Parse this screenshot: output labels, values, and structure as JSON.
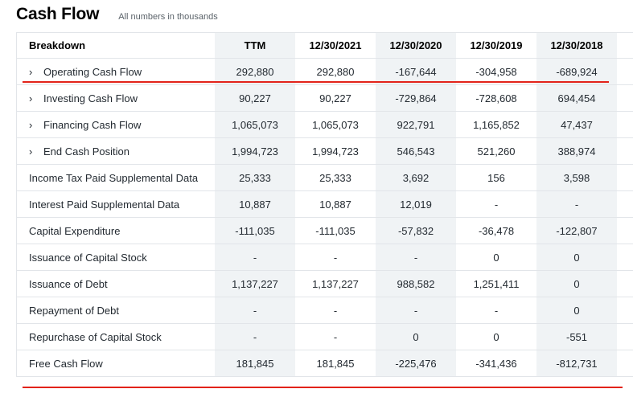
{
  "page": {
    "title": "Cash Flow",
    "subtitle": "All numbers in thousands"
  },
  "table": {
    "header": [
      "Breakdown",
      "TTM",
      "12/30/2021",
      "12/30/2020",
      "12/30/2019",
      "12/30/2018"
    ],
    "rows": [
      {
        "label": "Operating Cash Flow",
        "expandable": true,
        "values": [
          "292,880",
          "292,880",
          "-167,644",
          "-304,958",
          "-689,924"
        ]
      },
      {
        "label": "Investing Cash Flow",
        "expandable": true,
        "values": [
          "90,227",
          "90,227",
          "-729,864",
          "-728,608",
          "694,454"
        ]
      },
      {
        "label": "Financing Cash Flow",
        "expandable": true,
        "values": [
          "1,065,073",
          "1,065,073",
          "922,791",
          "1,165,852",
          "47,437"
        ]
      },
      {
        "label": "End Cash Position",
        "expandable": true,
        "values": [
          "1,994,723",
          "1,994,723",
          "546,543",
          "521,260",
          "388,974"
        ]
      },
      {
        "label": "Income Tax Paid Supplemental Data",
        "expandable": false,
        "values": [
          "25,333",
          "25,333",
          "3,692",
          "156",
          "3,598"
        ]
      },
      {
        "label": "Interest Paid Supplemental Data",
        "expandable": false,
        "values": [
          "10,887",
          "10,887",
          "12,019",
          "-",
          "-"
        ]
      },
      {
        "label": "Capital Expenditure",
        "expandable": false,
        "values": [
          "-111,035",
          "-111,035",
          "-57,832",
          "-36,478",
          "-122,807"
        ]
      },
      {
        "label": "Issuance of Capital Stock",
        "expandable": false,
        "values": [
          "-",
          "-",
          "-",
          "0",
          "0"
        ]
      },
      {
        "label": "Issuance of Debt",
        "expandable": false,
        "values": [
          "1,137,227",
          "1,137,227",
          "988,582",
          "1,251,411",
          "0"
        ]
      },
      {
        "label": "Repayment of Debt",
        "expandable": false,
        "values": [
          "-",
          "-",
          "-",
          "-",
          "0"
        ]
      },
      {
        "label": "Repurchase of Capital Stock",
        "expandable": false,
        "values": [
          "-",
          "-",
          "0",
          "0",
          "-551"
        ]
      },
      {
        "label": "Free Cash Flow",
        "expandable": false,
        "values": [
          "181,845",
          "181,845",
          "-225,476",
          "-341,436",
          "-812,731"
        ]
      }
    ]
  },
  "icons": {
    "expand": "chevron-right-icon",
    "expand_glyph": "›"
  },
  "colors": {
    "highlight_line": "#e2231a",
    "shaded_column": "#f0f3f5"
  }
}
